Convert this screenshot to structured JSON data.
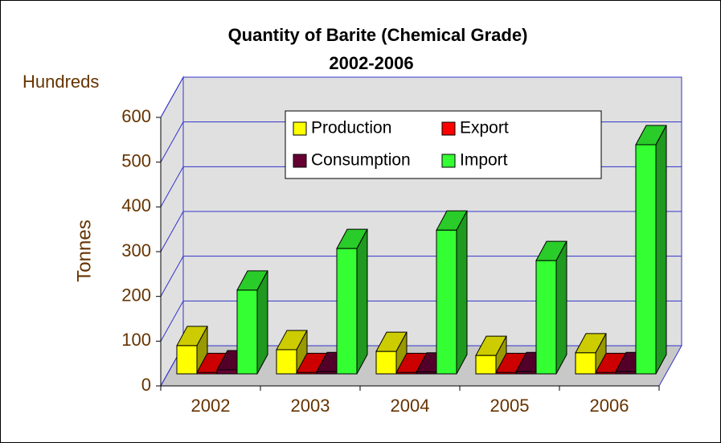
{
  "chart_data": {
    "type": "bar3d",
    "title": "Quantity of Barite (Chemical Grade)",
    "subtitle": "2002-2006",
    "y_label": "Tonnes",
    "y_unit": "Hundreds",
    "categories": [
      "2002",
      "2003",
      "2004",
      "2005",
      "2006"
    ],
    "series": [
      {
        "name": "Production",
        "color": "#ffff00",
        "values": [
          63,
          54,
          50,
          41,
          47
        ]
      },
      {
        "name": "Export",
        "color": "#ff0000",
        "values": [
          3,
          3,
          3,
          3,
          3
        ]
      },
      {
        "name": "Consumption",
        "color": "#660033",
        "values": [
          9,
          5,
          4,
          5,
          5
        ]
      },
      {
        "name": "Import",
        "color": "#33ff33",
        "values": [
          187,
          280,
          321,
          253,
          512
        ]
      }
    ],
    "ylim": [
      0,
      600
    ],
    "yticks": [
      0,
      100,
      200,
      300,
      400,
      500,
      600
    ],
    "grid": true,
    "legend": "top"
  }
}
